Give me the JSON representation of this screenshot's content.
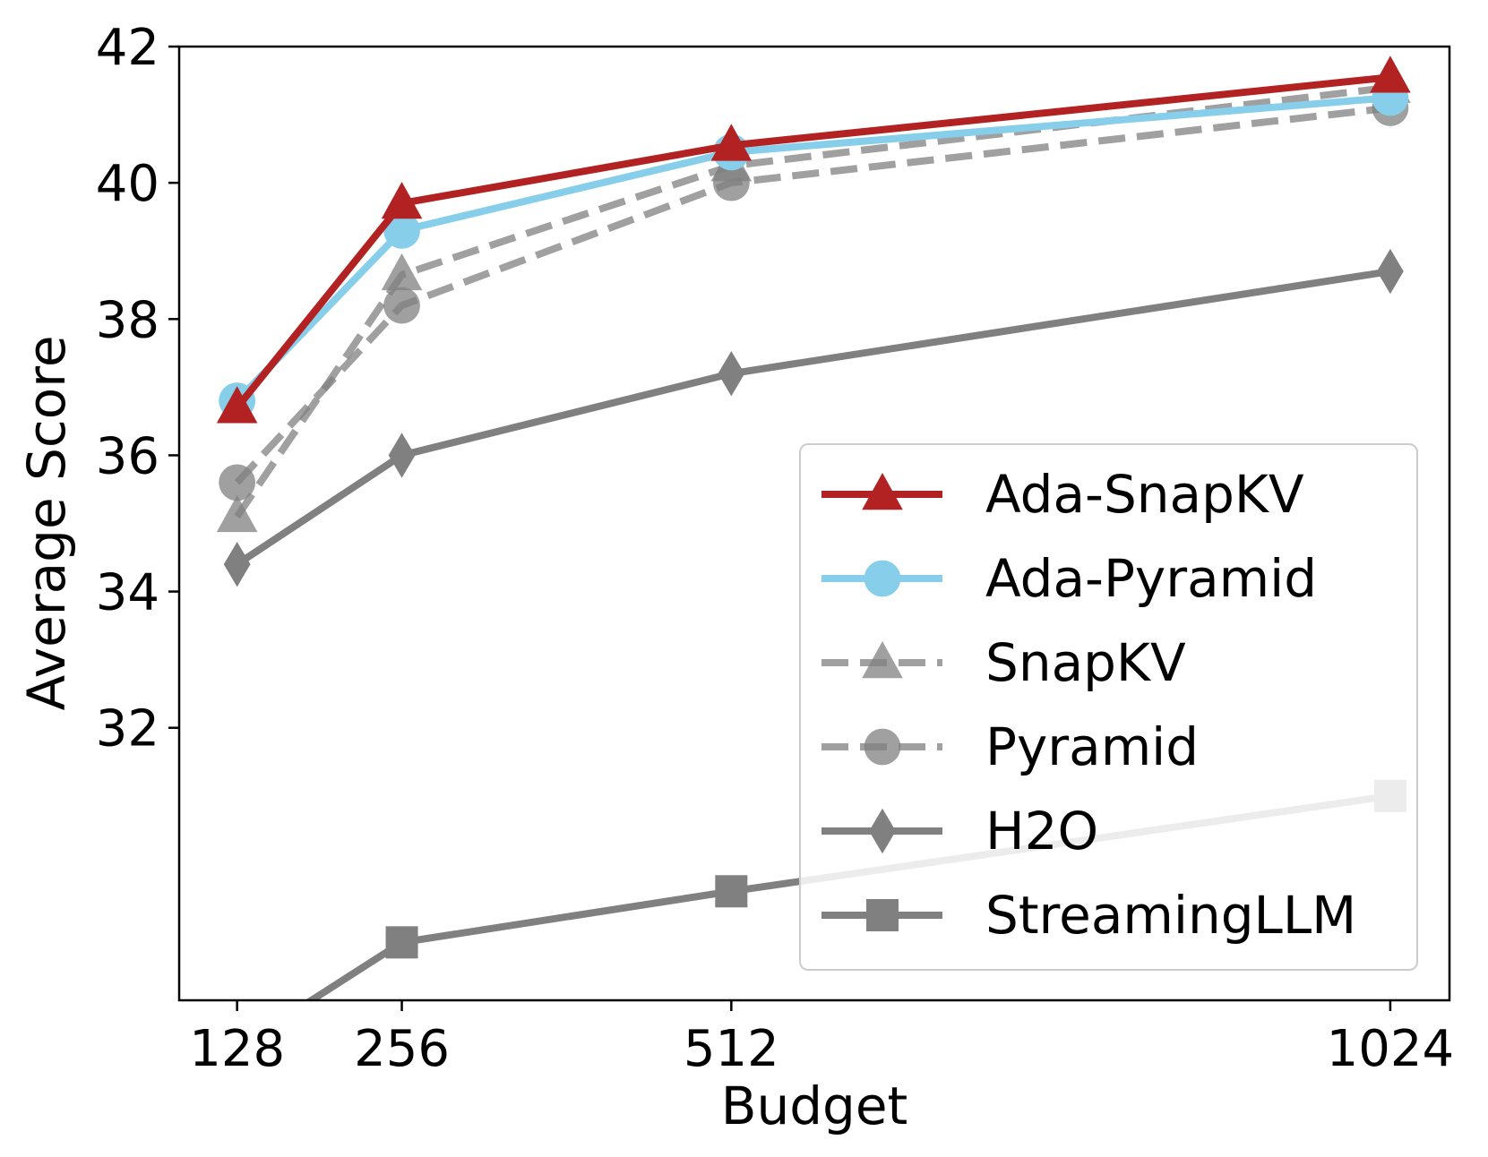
{
  "chart_data": {
    "type": "line",
    "title": "",
    "xlabel": "Budget",
    "ylabel": "Average Score",
    "x": [
      128,
      256,
      512,
      1024
    ],
    "x_tick_labels": [
      "128",
      "256",
      "512",
      "1024"
    ],
    "xlim": [
      83,
      1070
    ],
    "ylim": [
      28,
      42
    ],
    "y_ticks": [
      32,
      34,
      36,
      38,
      40,
      42
    ],
    "y_tick_labels": [
      "32",
      "34",
      "36",
      "38",
      "40",
      "42"
    ],
    "grid": false,
    "legend_position": "lower right",
    "series": [
      {
        "name": "Ada-SnapKV",
        "values": [
          36.7,
          39.7,
          40.55,
          41.55
        ],
        "color": "#b22222",
        "marker": "triangle",
        "dash": "solid"
      },
      {
        "name": "Ada-Pyramid",
        "values": [
          36.8,
          39.3,
          40.45,
          41.25
        ],
        "color": "#87ceeb",
        "marker": "circle",
        "dash": "solid"
      },
      {
        "name": "SnapKV",
        "values": [
          35.1,
          38.65,
          40.25,
          41.4
        ],
        "color": "#808080",
        "marker": "triangle",
        "dash": "dashed"
      },
      {
        "name": "Pyramid",
        "values": [
          35.6,
          38.2,
          40.0,
          41.1
        ],
        "color": "#808080",
        "marker": "circle",
        "dash": "dashed"
      },
      {
        "name": "H2O",
        "values": [
          34.4,
          36.0,
          37.2,
          38.7
        ],
        "color": "#808080",
        "marker": "diamond",
        "dash": "solid"
      },
      {
        "name": "StreamingLLM",
        "values": [
          27.3,
          28.85,
          29.6,
          31.0
        ],
        "color": "#808080",
        "marker": "square",
        "dash": "solid"
      }
    ]
  }
}
